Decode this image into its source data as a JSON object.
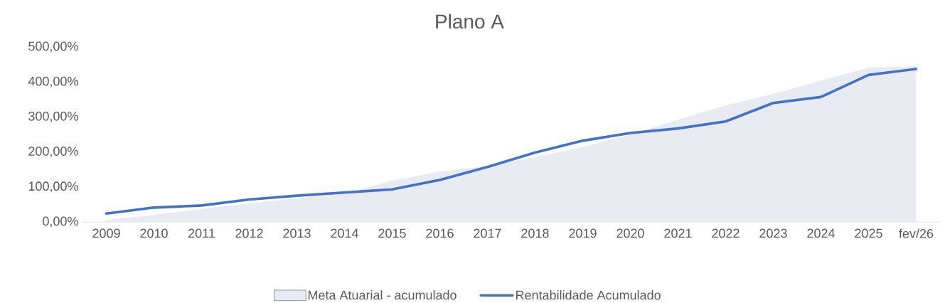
{
  "chart_data": {
    "type": "line",
    "title": "Plano A",
    "categories": [
      "2009",
      "2010",
      "2011",
      "2012",
      "2013",
      "2014",
      "2015",
      "2016",
      "2017",
      "2018",
      "2019",
      "2020",
      "2021",
      "2022",
      "2023",
      "2024",
      "2025",
      "fev/26"
    ],
    "series": [
      {
        "name": "Meta Atuarial - acumulado",
        "type": "area",
        "color": "#e8ebf1",
        "values": [
          6,
          20,
          37,
          53,
          67,
          81,
          118,
          144,
          160,
          185,
          214,
          250,
          292,
          333,
          366,
          404,
          441,
          445
        ]
      },
      {
        "name": "Rentabilidade Acumulado",
        "color": "#4472c4",
        "values": [
          24,
          41,
          47,
          64,
          75,
          84,
          93,
          120,
          157,
          198,
          232,
          254,
          267,
          287,
          340,
          357,
          420,
          437
        ]
      }
    ],
    "ylim": [
      0,
      500
    ],
    "yticks": [
      {
        "value": 0,
        "label": "0,00%"
      },
      {
        "value": 100,
        "label": "100,00%"
      },
      {
        "value": 200,
        "label": "200,00%"
      },
      {
        "value": 300,
        "label": "300,00%"
      },
      {
        "value": 400,
        "label": "400,00%"
      },
      {
        "value": 500,
        "label": "500,00%"
      }
    ],
    "legend": "bottom"
  }
}
